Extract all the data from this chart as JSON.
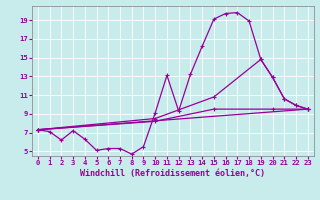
{
  "xlabel": "Windchill (Refroidissement éolien,°C)",
  "bg_color": "#c8ecec",
  "line_color": "#990099",
  "grid_color": "#ffffff",
  "xlim": [
    -0.5,
    23.5
  ],
  "ylim": [
    4.5,
    20.5
  ],
  "xticks": [
    0,
    1,
    2,
    3,
    4,
    5,
    6,
    7,
    8,
    9,
    10,
    11,
    12,
    13,
    14,
    15,
    16,
    17,
    18,
    19,
    20,
    21,
    22,
    23
  ],
  "yticks": [
    5,
    7,
    9,
    11,
    13,
    15,
    17,
    19
  ],
  "lines": [
    {
      "x": [
        0,
        1,
        2,
        3,
        4,
        5,
        6,
        7,
        8,
        9,
        10,
        11,
        12,
        13,
        14,
        15,
        16,
        17,
        18,
        19,
        20,
        21,
        22,
        23
      ],
      "y": [
        7.3,
        7.1,
        6.2,
        7.2,
        6.3,
        5.1,
        5.3,
        5.3,
        4.7,
        5.5,
        9.1,
        13.1,
        9.3,
        13.2,
        16.2,
        19.1,
        19.7,
        19.8,
        18.9,
        14.8,
        12.9,
        10.6,
        9.9,
        9.5
      ]
    },
    {
      "x": [
        0,
        23
      ],
      "y": [
        7.3,
        9.5
      ]
    },
    {
      "x": [
        0,
        10,
        15,
        20,
        23
      ],
      "y": [
        7.3,
        8.2,
        9.5,
        9.5,
        9.5
      ]
    },
    {
      "x": [
        0,
        10,
        15,
        19,
        20,
        21,
        22,
        23
      ],
      "y": [
        7.3,
        8.5,
        10.8,
        14.8,
        12.9,
        10.6,
        9.9,
        9.5
      ]
    }
  ],
  "marker": "+",
  "markersize": 3,
  "linewidth": 0.9,
  "tick_fontsize": 5.2,
  "xlabel_fontsize": 6.0
}
